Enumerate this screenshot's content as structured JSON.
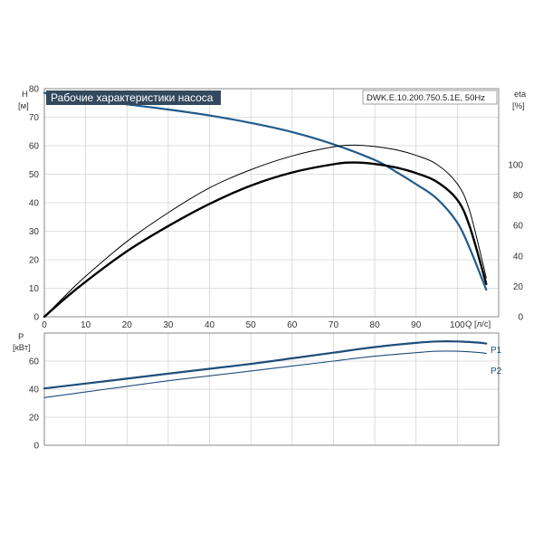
{
  "colors": {
    "head": "#1f5b8c",
    "eff": "#000000",
    "power": "#1f4e79",
    "grid": "#d4d4d4",
    "frame": "#888888",
    "title_bg": "#34495e"
  },
  "chart_data": [
    {
      "type": "line",
      "title": "Рабочие характеристики насоса",
      "model": "DWK.E.10.200.750.5.1E, 50Hz",
      "ylabel": "H",
      "yunit": "[м]",
      "y2label": "eta",
      "y2unit": "[%]",
      "xlabel": "Q",
      "xunit": "[л/с]",
      "xlim": [
        0,
        110
      ],
      "xticks": [
        0,
        10,
        20,
        30,
        40,
        50,
        60,
        70,
        80,
        90,
        100
      ],
      "ylim": [
        0,
        80
      ],
      "yticks": [
        0,
        10,
        20,
        30,
        40,
        50,
        60,
        70,
        80
      ],
      "y2lim": [
        0,
        150
      ],
      "y2ticks": [
        0,
        20,
        40,
        60,
        80,
        100
      ],
      "grid": true,
      "series": [
        {
          "kind": "head",
          "x": [
            0,
            10,
            20,
            30,
            40,
            50,
            60,
            70,
            80,
            85,
            90,
            95,
            100,
            103,
            107
          ],
          "y": [
            78.5,
            76.2,
            74.5,
            72.7,
            70.6,
            68.0,
            64.8,
            60.5,
            55.0,
            51.0,
            46.5,
            41.5,
            33.0,
            24.0,
            9.5
          ]
        },
        {
          "kind": "eff_thick",
          "x": [
            0,
            5,
            10,
            20,
            30,
            40,
            50,
            60,
            70,
            75,
            80,
            85,
            90,
            95,
            100,
            103,
            107
          ],
          "y": [
            0,
            6.4,
            12.3,
            23.0,
            31.8,
            39.6,
            46.0,
            50.6,
            53.5,
            54.1,
            53.6,
            52.4,
            50.4,
            47.4,
            41.0,
            31.6,
            11.5
          ]
        },
        {
          "kind": "eff_thin",
          "x": [
            0,
            5,
            10,
            20,
            30,
            40,
            50,
            60,
            70,
            75,
            80,
            85,
            90,
            95,
            100,
            103,
            107
          ],
          "y": [
            0,
            7.3,
            14.2,
            26.4,
            36.5,
            45.2,
            51.6,
            56.4,
            59.6,
            60.2,
            59.7,
            58.6,
            56.6,
            53.5,
            46.6,
            37.0,
            13.6
          ]
        }
      ]
    },
    {
      "type": "line",
      "ylabel": "P",
      "yunit": "[кВт]",
      "xlim": [
        0,
        110
      ],
      "xticks": [
        0,
        10,
        20,
        30,
        40,
        50,
        60,
        70,
        80,
        90,
        100
      ],
      "ylim": [
        0,
        80
      ],
      "yticks": [
        0,
        20,
        40,
        60
      ],
      "grid": true,
      "series": [
        {
          "name": "P1",
          "x": [
            0,
            10,
            20,
            30,
            40,
            50,
            60,
            70,
            80,
            90,
            95,
            100,
            105,
            107
          ],
          "y": [
            40.5,
            44.0,
            47.5,
            51.0,
            54.5,
            58.0,
            62.0,
            66.0,
            70.0,
            73.0,
            74.0,
            74.0,
            73.2,
            72.5
          ]
        },
        {
          "name": "P2",
          "x": [
            0,
            10,
            20,
            30,
            40,
            50,
            60,
            70,
            80,
            90,
            95,
            100,
            105,
            107
          ],
          "y": [
            34.0,
            38.0,
            42.0,
            46.0,
            49.5,
            53.0,
            56.5,
            60.0,
            63.5,
            66.0,
            67.0,
            67.0,
            66.2,
            65.5
          ]
        }
      ]
    }
  ]
}
